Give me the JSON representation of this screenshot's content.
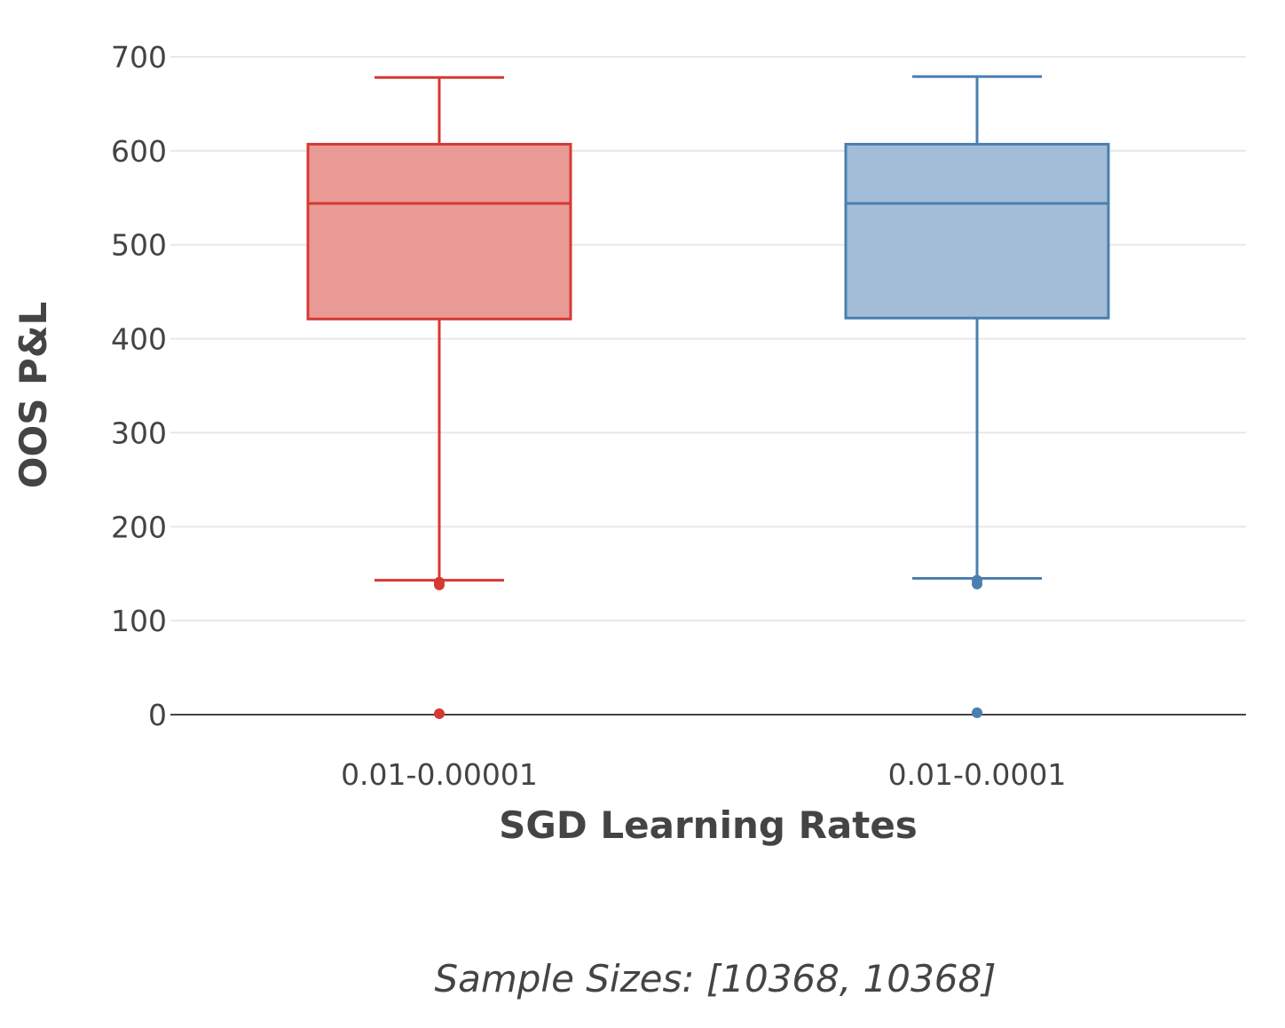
{
  "chart_data": {
    "type": "box",
    "xlabel": "SGD Learning Rates",
    "ylabel": "OOS P&L",
    "ylim": [
      0,
      700
    ],
    "yticks": [
      0,
      100,
      200,
      300,
      400,
      500,
      600,
      700
    ],
    "grid": true,
    "legend": "none",
    "categories": [
      "0.01-0.00001",
      "0.01-0.0001"
    ],
    "series": [
      {
        "category": "0.01-0.00001",
        "color": "#d43a33",
        "fill": "#e99a94",
        "whisker_low": 143,
        "q1": 421,
        "median": 544,
        "q3": 607,
        "whisker_high": 678,
        "outliers": [
          141,
          138,
          1
        ]
      },
      {
        "category": "0.01-0.0001",
        "color": "#4a7fb0",
        "fill": "#a3bdd8",
        "whisker_low": 145,
        "q1": 422,
        "median": 544,
        "q3": 607,
        "whisker_high": 679,
        "outliers": [
          143,
          139,
          2
        ]
      }
    ],
    "footnote": "Sample Sizes: [10368, 10368]"
  }
}
